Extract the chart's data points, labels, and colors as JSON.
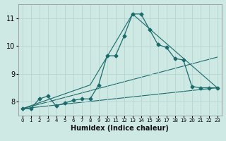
{
  "xlabel": "Humidex (Indice chaleur)",
  "bg_color": "#cee8e4",
  "line_color": "#1a6b6b",
  "grid_color": "#b8d4d0",
  "xlim": [
    -0.5,
    23.5
  ],
  "ylim": [
    7.5,
    11.5
  ],
  "xticks": [
    0,
    1,
    2,
    3,
    4,
    5,
    6,
    7,
    8,
    9,
    10,
    11,
    12,
    13,
    14,
    15,
    16,
    17,
    18,
    19,
    20,
    21,
    22,
    23
  ],
  "yticks": [
    8,
    9,
    10,
    11
  ],
  "line1_x": [
    0,
    1,
    2,
    3,
    4,
    5,
    6,
    7,
    8,
    9,
    10,
    11,
    12,
    13,
    14,
    15,
    16,
    17,
    18,
    19,
    20,
    21,
    22,
    23
  ],
  "line1_y": [
    7.75,
    7.75,
    8.1,
    8.2,
    7.85,
    7.95,
    8.05,
    8.1,
    8.1,
    8.6,
    9.65,
    9.65,
    10.35,
    11.15,
    11.15,
    10.6,
    10.05,
    9.95,
    9.55,
    9.5,
    8.55,
    8.5,
    8.5,
    8.5
  ],
  "line2_x": [
    0,
    8,
    13,
    23
  ],
  "line2_y": [
    7.75,
    8.6,
    11.15,
    8.5
  ],
  "line3_x": [
    0,
    23
  ],
  "line3_y": [
    7.75,
    9.6
  ],
  "line4_x": [
    0,
    23
  ],
  "line4_y": [
    7.75,
    8.5
  ]
}
